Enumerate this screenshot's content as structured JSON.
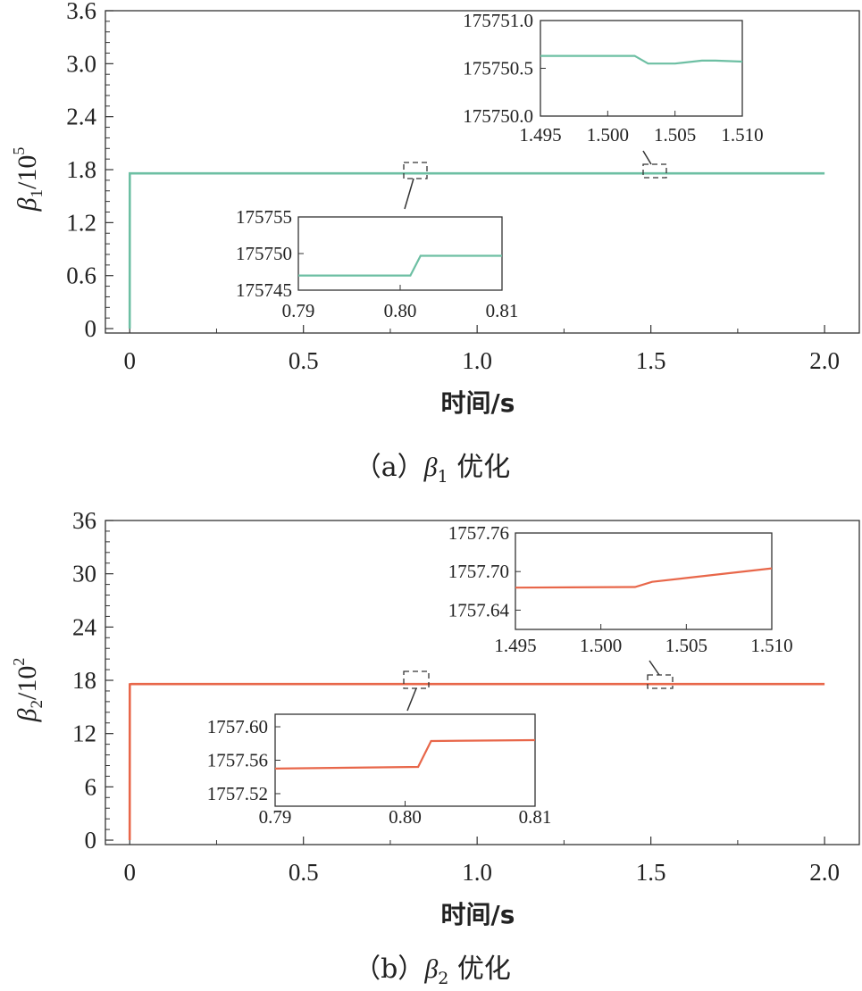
{
  "chart_data": [
    {
      "id": "a",
      "type": "line",
      "caption": {
        "open": "（a）",
        "symbol": "β",
        "sub": "1",
        "text": "优化"
      },
      "xlabel": "时间/s",
      "ylabel": {
        "symbol": "β",
        "sub": "1",
        "unit": "/10",
        "exp": "5"
      },
      "xlim": [
        -0.07,
        2.1
      ],
      "ylim": [
        -0.05,
        3.6
      ],
      "xticks": [
        0,
        0.5,
        1.0,
        1.5,
        2.0
      ],
      "xtick_labels": [
        "0",
        "0.5",
        "1.0",
        "1.5",
        "2.0"
      ],
      "yticks": [
        0,
        0.6,
        1.2,
        1.8,
        2.4,
        3.0,
        3.6
      ],
      "ytick_labels": [
        "0",
        "0.6",
        "1.2",
        "1.8",
        "2.4",
        "3.0",
        "3.6"
      ],
      "color": "#6dbfa3",
      "series": [
        {
          "x": [
            0,
            0.0001,
            0.005,
            2.0
          ],
          "y": [
            0,
            1.7574,
            1.7575,
            1.7575
          ]
        }
      ],
      "insets": [
        {
          "name": "inset-a-1",
          "source_x": [
            0.79,
            0.81
          ],
          "xlim": [
            0.79,
            0.81
          ],
          "ylim": [
            175745,
            175755
          ],
          "xticks": [
            0.79,
            0.8,
            0.81
          ],
          "xtick_labels": [
            "0.79",
            "0.80",
            "0.81"
          ],
          "yticks": [
            175745,
            175750,
            175755
          ],
          "ytick_labels": [
            "175745",
            "175750",
            "175755"
          ],
          "x": [
            0.79,
            0.801,
            0.802,
            0.81
          ],
          "y": [
            175747,
            175747,
            175749.7,
            175749.7
          ]
        },
        {
          "name": "inset-a-2",
          "source_x": [
            1.495,
            1.51
          ],
          "xlim": [
            1.495,
            1.51
          ],
          "ylim": [
            175750.0,
            175751.0
          ],
          "xticks": [
            1.495,
            1.5,
            1.505,
            1.51
          ],
          "xtick_labels": [
            "1.495",
            "1.500",
            "1.505",
            "1.510"
          ],
          "yticks": [
            175750.0,
            175750.5,
            175751.0
          ],
          "ytick_labels": [
            "175750.0",
            "175750.5",
            "175751.0"
          ],
          "x": [
            1.495,
            1.502,
            1.503,
            1.505,
            1.507,
            1.508,
            1.51
          ],
          "y": [
            175750.63,
            175750.63,
            175750.55,
            175750.55,
            175750.58,
            175750.58,
            175750.57
          ]
        }
      ]
    },
    {
      "id": "b",
      "type": "line",
      "caption": {
        "open": "（b）",
        "symbol": "β",
        "sub": "2",
        "text": "优化"
      },
      "xlabel": "时间/s",
      "ylabel": {
        "symbol": "β",
        "sub": "2",
        "unit": "/10",
        "exp": "2"
      },
      "xlim": [
        -0.07,
        2.1
      ],
      "ylim": [
        -0.5,
        36
      ],
      "xticks": [
        0,
        0.5,
        1.0,
        1.5,
        2.0
      ],
      "xtick_labels": [
        "0",
        "0.5",
        "1.0",
        "1.5",
        "2.0"
      ],
      "yticks": [
        0,
        6,
        12,
        18,
        24,
        30,
        36
      ],
      "ytick_labels": [
        "0",
        "6",
        "12",
        "18",
        "24",
        "30",
        "36"
      ],
      "color": "#e8674a",
      "series": [
        {
          "x": [
            0,
            0.0001,
            0.005,
            2.0
          ],
          "y": [
            0,
            17.55,
            17.575,
            17.577
          ]
        }
      ],
      "insets": [
        {
          "name": "inset-b-1",
          "source_x": [
            0.79,
            0.81
          ],
          "xlim": [
            0.79,
            0.81
          ],
          "ylim": [
            1757.505,
            1757.615
          ],
          "xticks": [
            0.79,
            0.8,
            0.81
          ],
          "xtick_labels": [
            "0.79",
            "0.80",
            "0.81"
          ],
          "yticks": [
            1757.52,
            1757.56,
            1757.6
          ],
          "ytick_labels": [
            "1757.52",
            "1757.56",
            "1757.60"
          ],
          "x": [
            0.79,
            0.801,
            0.802,
            0.81
          ],
          "y": [
            1757.55,
            1757.552,
            1757.583,
            1757.584
          ]
        },
        {
          "name": "inset-b-2",
          "source_x": [
            1.495,
            1.51
          ],
          "xlim": [
            1.495,
            1.51
          ],
          "ylim": [
            1757.61,
            1757.76
          ],
          "xticks": [
            1.495,
            1.5,
            1.505,
            1.51
          ],
          "xtick_labels": [
            "1.495",
            "1.500",
            "1.505",
            "1.510"
          ],
          "yticks": [
            1757.64,
            1757.7,
            1757.76
          ],
          "ytick_labels": [
            "1757.64",
            "1757.70",
            "1757.76"
          ],
          "x": [
            1.495,
            1.502,
            1.503,
            1.505,
            1.51
          ],
          "y": [
            1757.675,
            1757.676,
            1757.684,
            1757.69,
            1757.705
          ]
        }
      ]
    }
  ]
}
